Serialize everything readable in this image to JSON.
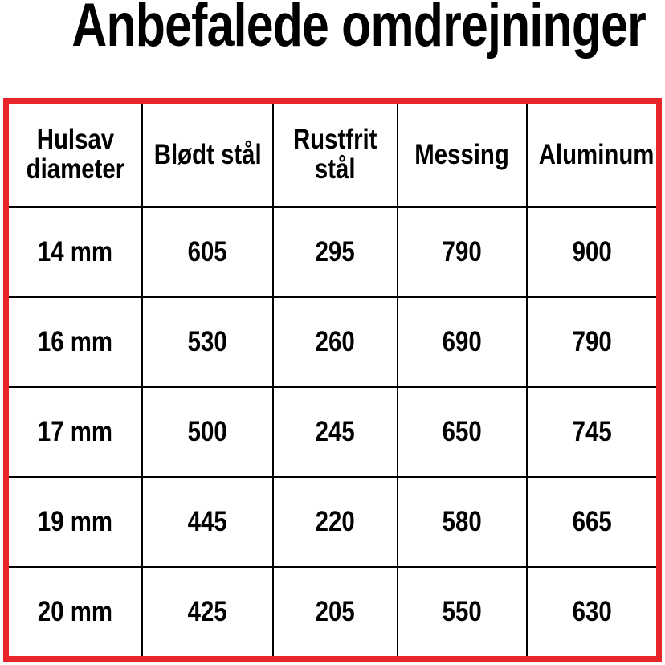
{
  "title": "Anbefalede omdrejninger",
  "colors": {
    "border_red": "#e8242b",
    "grid_black": "#000000",
    "text": "#000000",
    "background": "#ffffff"
  },
  "chart_data": {
    "type": "table",
    "title": "Anbefalede omdrejninger",
    "columns": [
      "Hulsav\ndiameter",
      "Blødt stål",
      "Rustfrit\nstål",
      "Messing",
      "Aluminum"
    ],
    "rows": [
      [
        "14 mm",
        "605",
        "295",
        "790",
        "900"
      ],
      [
        "16 mm",
        "530",
        "260",
        "690",
        "790"
      ],
      [
        "17 mm",
        "500",
        "245",
        "650",
        "745"
      ],
      [
        "19 mm",
        "445",
        "220",
        "580",
        "665"
      ],
      [
        "20 mm",
        "425",
        "205",
        "550",
        "630"
      ]
    ]
  }
}
